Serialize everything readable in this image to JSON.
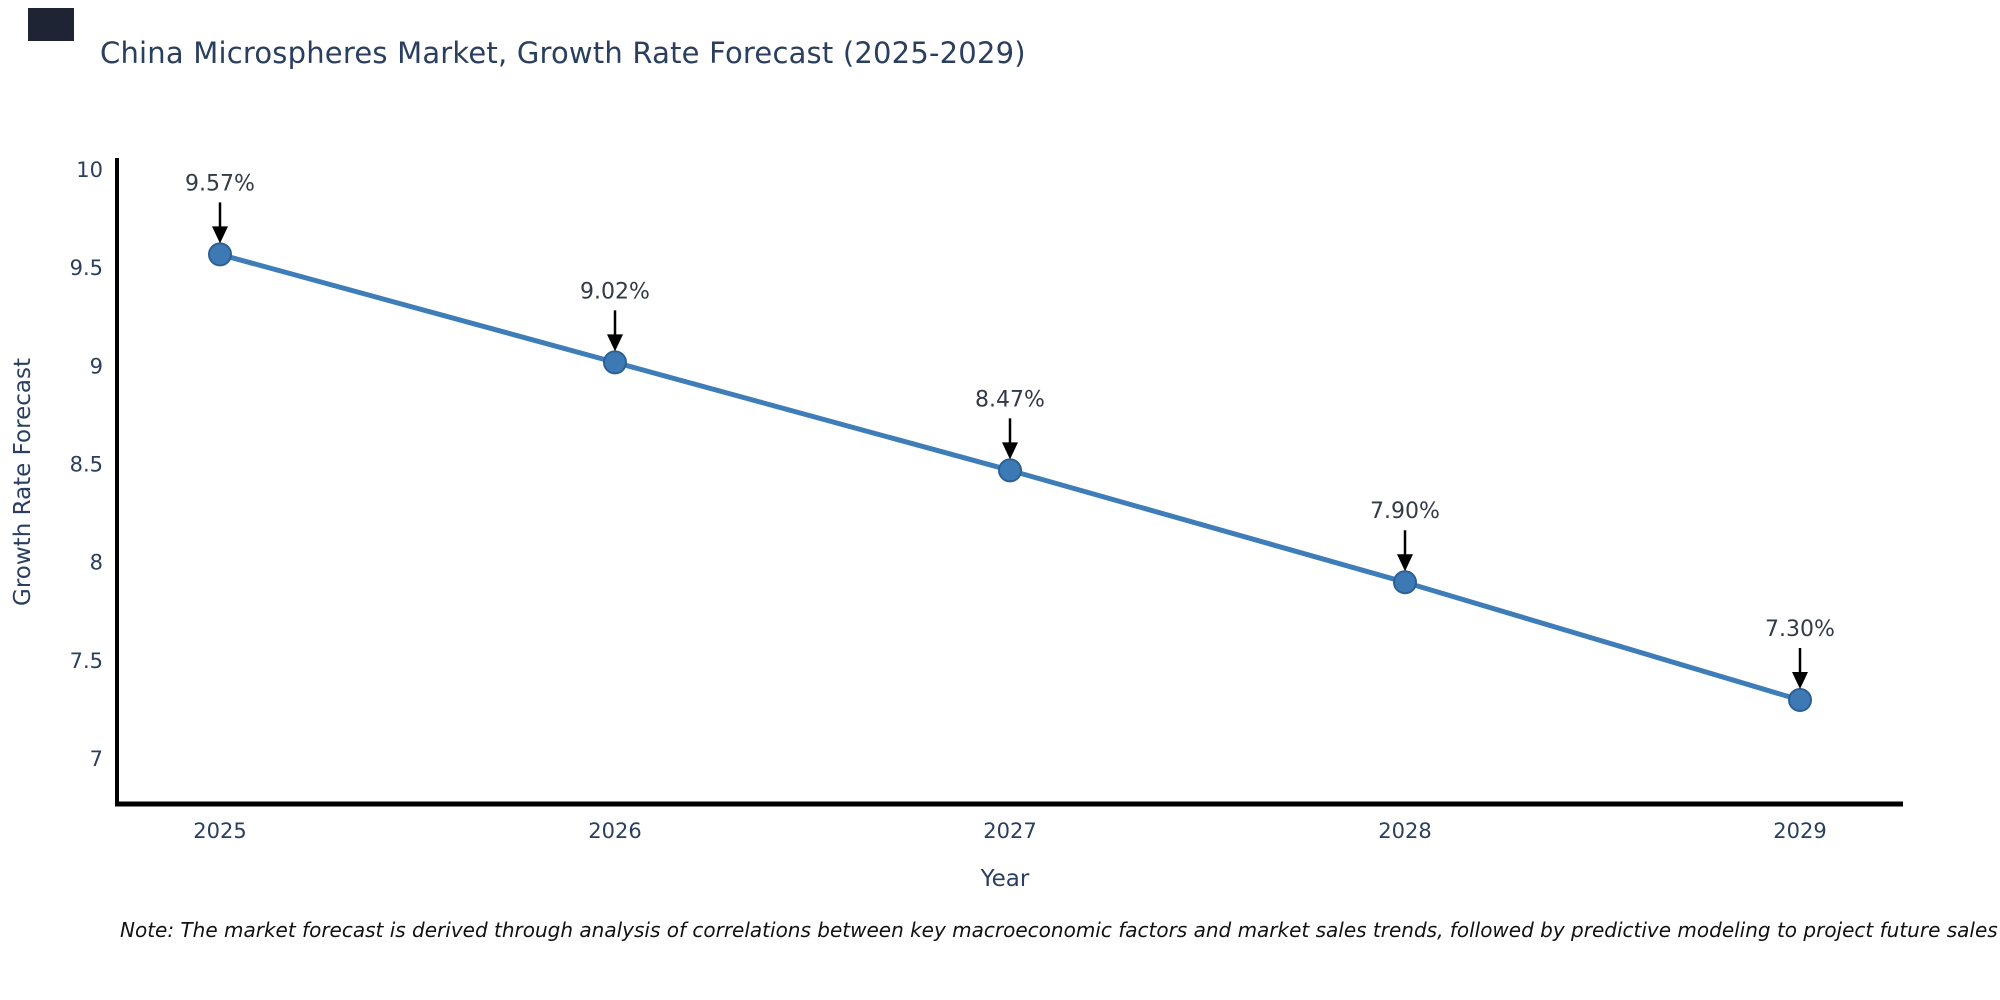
{
  "title": "China Microspheres Market, Growth Rate Forecast (2025-2029)",
  "note": "Note: The market forecast is derived through analysis of correlations between key macroeconomic factors and market sales trends, followed by predictive modeling to project future sales",
  "decor": {
    "corner_square_color": "#1e2433"
  },
  "chart_data": {
    "type": "line",
    "title": "China Microspheres Market, Growth Rate Forecast (2025-2029)",
    "xlabel": "Year",
    "ylabel": "Growth Rate Forecast",
    "x": [
      2025,
      2026,
      2027,
      2028,
      2029
    ],
    "y": [
      9.57,
      9.02,
      8.47,
      7.9,
      7.3
    ],
    "point_labels": [
      "9.57%",
      "9.02%",
      "8.47%",
      "7.90%",
      "7.30%"
    ],
    "xtick_labels": [
      "2025",
      "2026",
      "2027",
      "2028",
      "2029"
    ],
    "ytick_values": [
      10,
      9.5,
      9,
      8.5,
      8,
      7.5,
      7
    ],
    "ytick_labels": [
      "10",
      "9.5",
      "9",
      "8.5",
      "8",
      "7.5",
      "7"
    ],
    "ylim": [
      6.78,
      10.06
    ],
    "grid": false,
    "legend_position": "none",
    "colors": {
      "line": "#3f7db8",
      "marker": "#3d7ab5",
      "marker_edge": "#2e6094",
      "axis_line": "#000000",
      "tick_text": "#2a3f5f",
      "title_text": "#2a3f5f",
      "annotation_text": "#333a47",
      "annotation_arrow": "#000000"
    }
  }
}
